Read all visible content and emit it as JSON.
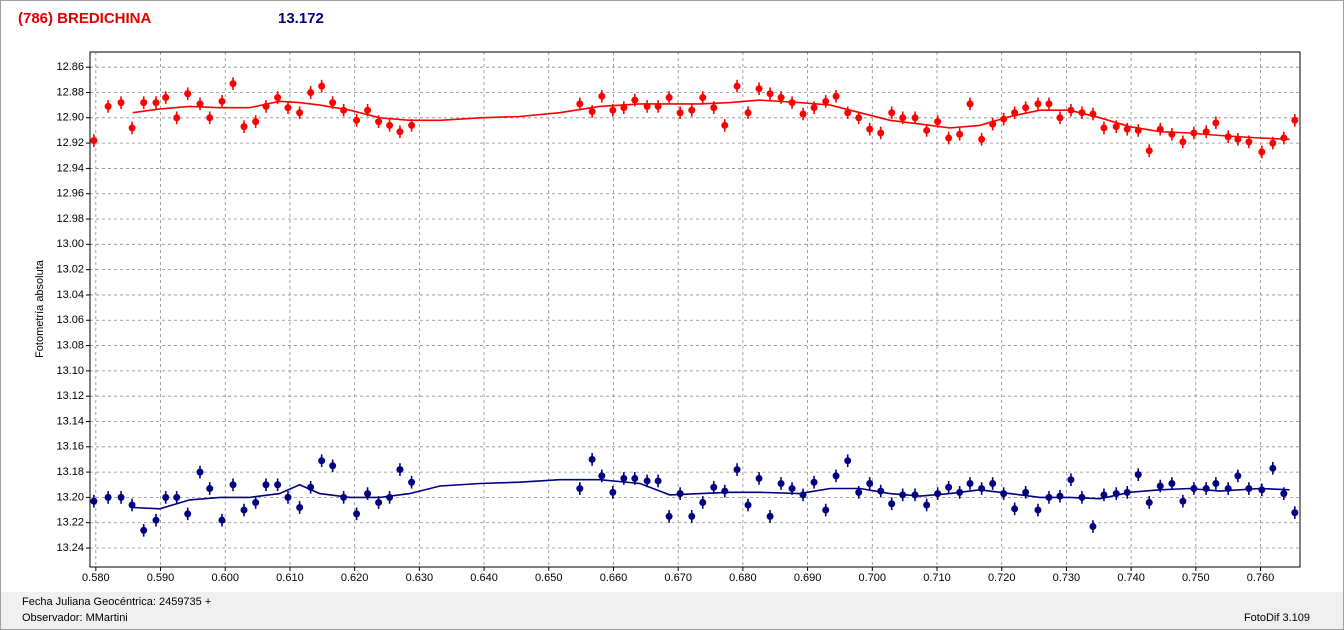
{
  "header": {
    "title": "(786) BREDICHINA",
    "magnitude": "13.172"
  },
  "chart_data": {
    "type": "scatter",
    "y_label": "Fotometría absoluta",
    "x_label": "Fecha Juliana Geocéntrica: 2459735 +",
    "x": [
      0.5797,
      0.5819,
      0.5839,
      0.5856,
      0.5874,
      0.5893,
      0.5908,
      0.5925,
      0.5942,
      0.5961,
      0.5976,
      0.5995,
      0.6012,
      0.6029,
      0.6047,
      0.6063,
      0.6081,
      0.6097,
      0.6115,
      0.6132,
      0.6149,
      0.6166,
      0.6183,
      0.6203,
      0.622,
      0.6237,
      0.6254,
      0.627,
      0.6288,
      0.6548,
      0.6567,
      0.6582,
      0.6599,
      0.6616,
      0.6633,
      0.6652,
      0.6669,
      0.6686,
      0.6703,
      0.6721,
      0.6738,
      0.6755,
      0.6772,
      0.6791,
      0.6808,
      0.6825,
      0.6842,
      0.6859,
      0.6876,
      0.6893,
      0.691,
      0.6928,
      0.6944,
      0.6962,
      0.6979,
      0.6996,
      0.7013,
      0.703,
      0.7047,
      0.7066,
      0.7084,
      0.7101,
      0.7118,
      0.7135,
      0.7151,
      0.7169,
      0.7186,
      0.7203,
      0.722,
      0.7237,
      0.7256,
      0.7273,
      0.729,
      0.7307,
      0.7324,
      0.7341,
      0.7358,
      0.7377,
      0.7394,
      0.7411,
      0.7428,
      0.7445,
      0.7463,
      0.748,
      0.7497,
      0.7516,
      0.7531,
      0.755,
      0.7565,
      0.7582,
      0.7602,
      0.7619,
      0.7636,
      0.7653
    ],
    "fit_x": [
      0.5857,
      0.5899,
      0.5945,
      0.5992,
      0.6038,
      0.6084,
      0.6115,
      0.6146,
      0.6193,
      0.6239,
      0.6285,
      0.6332,
      0.6394,
      0.6455,
      0.6517,
      0.6579,
      0.6641,
      0.6687,
      0.6734,
      0.678,
      0.6826,
      0.6888,
      0.6935,
      0.6981,
      0.7027,
      0.7074,
      0.712,
      0.7166,
      0.7213,
      0.7259,
      0.7305,
      0.7352,
      0.7398,
      0.7445,
      0.7491,
      0.7537,
      0.7599,
      0.7645
    ],
    "series": [
      {
        "color": "#ff0000",
        "error": 0.005,
        "values": [
          12.918,
          12.891,
          12.888,
          12.908,
          12.888,
          12.888,
          12.884,
          12.9,
          12.881,
          12.889,
          12.9,
          12.887,
          12.873,
          12.907,
          12.903,
          12.891,
          12.884,
          12.892,
          12.896,
          12.88,
          12.875,
          12.888,
          12.894,
          12.902,
          12.894,
          12.903,
          12.906,
          12.911,
          12.906,
          12.889,
          12.895,
          12.883,
          12.894,
          12.892,
          12.886,
          12.891,
          12.891,
          12.884,
          12.896,
          12.894,
          12.884,
          12.892,
          12.906,
          12.875,
          12.896,
          12.877,
          12.881,
          12.884,
          12.888,
          12.897,
          12.892,
          12.887,
          12.883,
          12.896,
          12.9,
          12.909,
          12.912,
          12.896,
          12.9,
          12.9,
          12.91,
          12.903,
          12.916,
          12.913,
          12.889,
          12.917,
          12.905,
          12.901,
          12.896,
          12.892,
          12.889,
          12.889,
          12.9,
          12.894,
          12.896,
          12.897,
          12.908,
          12.907,
          12.909,
          12.91,
          12.926,
          12.909,
          12.913,
          12.919,
          12.912,
          12.911,
          12.904,
          12.915,
          12.917,
          12.919,
          12.927,
          12.92,
          12.916,
          12.902
        ],
        "fit": [
          12.896,
          12.893,
          12.891,
          12.892,
          12.892,
          12.887,
          12.888,
          12.89,
          12.894,
          12.9,
          12.902,
          12.902,
          12.9,
          12.899,
          12.896,
          12.891,
          12.889,
          12.889,
          12.889,
          12.888,
          12.886,
          12.888,
          12.89,
          12.896,
          12.902,
          12.905,
          12.908,
          12.906,
          12.899,
          12.894,
          12.894,
          12.9,
          12.907,
          12.911,
          12.912,
          12.914,
          12.916,
          12.917
        ]
      },
      {
        "color": "#000080",
        "error": 0.005,
        "values": [
          13.203,
          13.2,
          13.2,
          13.206,
          13.226,
          13.218,
          13.2,
          13.2,
          13.213,
          13.18,
          13.193,
          13.218,
          13.19,
          13.21,
          13.204,
          13.19,
          13.19,
          13.2,
          13.208,
          13.192,
          13.171,
          13.175,
          13.2,
          13.213,
          13.197,
          13.204,
          13.2,
          13.178,
          13.188,
          13.193,
          13.17,
          13.183,
          13.196,
          13.185,
          13.185,
          13.187,
          13.187,
          13.215,
          13.197,
          13.215,
          13.204,
          13.192,
          13.195,
          13.178,
          13.206,
          13.185,
          13.215,
          13.189,
          13.193,
          13.198,
          13.188,
          13.21,
          13.183,
          13.171,
          13.196,
          13.189,
          13.195,
          13.205,
          13.198,
          13.198,
          13.206,
          13.197,
          13.192,
          13.196,
          13.189,
          13.193,
          13.189,
          13.197,
          13.209,
          13.196,
          13.21,
          13.2,
          13.199,
          13.186,
          13.2,
          13.223,
          13.198,
          13.197,
          13.196,
          13.182,
          13.204,
          13.191,
          13.189,
          13.203,
          13.193,
          13.193,
          13.189,
          13.193,
          13.183,
          13.193,
          13.194,
          13.177,
          13.197,
          13.212
        ],
        "fit": [
          13.208,
          13.209,
          13.202,
          13.2,
          13.2,
          13.197,
          13.19,
          13.197,
          13.2,
          13.2,
          13.197,
          13.191,
          13.189,
          13.188,
          13.186,
          13.186,
          13.189,
          13.198,
          13.197,
          13.196,
          13.196,
          13.197,
          13.193,
          13.193,
          13.197,
          13.199,
          13.197,
          13.194,
          13.197,
          13.2,
          13.2,
          13.201,
          13.196,
          13.194,
          13.193,
          13.195,
          13.193,
          13.194
        ]
      }
    ],
    "xlim": [
      0.5791,
      0.7661
    ],
    "ylim": [
      12.848,
      13.255
    ],
    "y_inverted": true,
    "xticks": [
      {
        "value": 0.58,
        "label": "0.580"
      },
      {
        "value": 0.59,
        "label": "0.590"
      },
      {
        "value": 0.6,
        "label": "0.600"
      },
      {
        "value": 0.61,
        "label": "0.610"
      },
      {
        "value": 0.62,
        "label": "0.620"
      },
      {
        "value": 0.63,
        "label": "0.630"
      },
      {
        "value": 0.64,
        "label": "0.640"
      },
      {
        "value": 0.65,
        "label": "0.650"
      },
      {
        "value": 0.66,
        "label": "0.660"
      },
      {
        "value": 0.67,
        "label": "0.670"
      },
      {
        "value": 0.68,
        "label": "0.680"
      },
      {
        "value": 0.69,
        "label": "0.690"
      },
      {
        "value": 0.7,
        "label": "0.700"
      },
      {
        "value": 0.71,
        "label": "0.710"
      },
      {
        "value": 0.72,
        "label": "0.720"
      },
      {
        "value": 0.73,
        "label": "0.730"
      },
      {
        "value": 0.74,
        "label": "0.740"
      },
      {
        "value": 0.75,
        "label": "0.750"
      },
      {
        "value": 0.76,
        "label": "0.760"
      }
    ],
    "yticks": [
      12.86,
      12.88,
      {
        "value": 12.9,
        "label": "12.90"
      },
      12.92,
      12.94,
      12.96,
      12.98,
      {
        "value": 13,
        "label": "13.00"
      },
      13.02,
      13.04,
      13.06,
      13.08,
      {
        "value": 13.1,
        "label": "13.10"
      },
      13.12,
      13.14,
      13.16,
      13.18,
      {
        "value": 13.2,
        "label": "13.20"
      },
      13.22,
      13.24
    ],
    "grid": true
  },
  "footer": {
    "observer": "Observador: MMartini",
    "software": "FotoDif 3.109"
  }
}
